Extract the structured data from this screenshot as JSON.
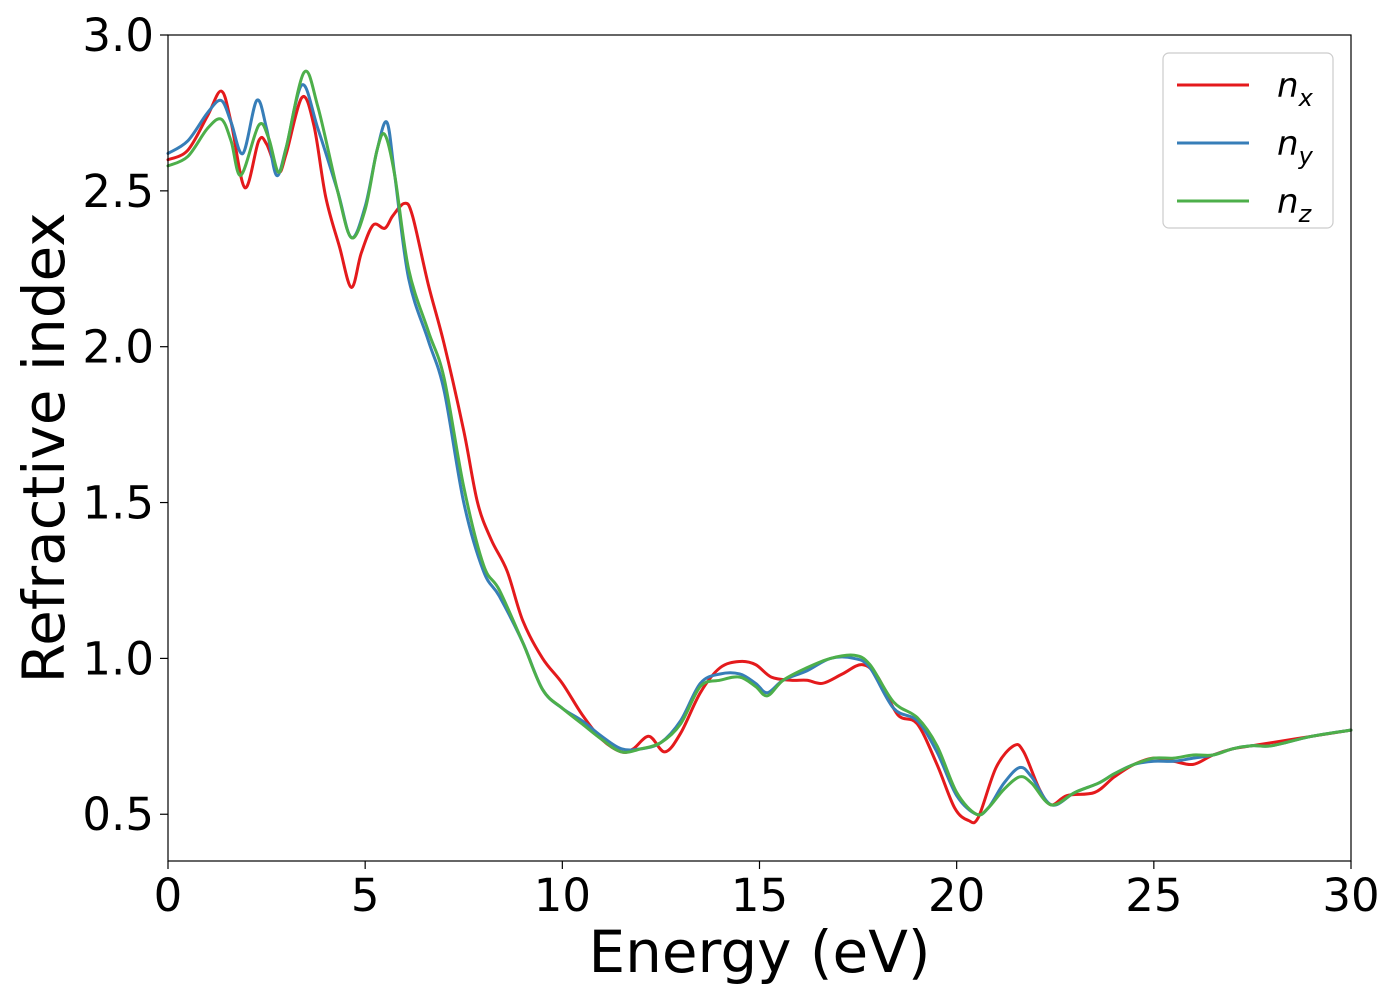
{
  "chart_data": {
    "type": "line",
    "title": "",
    "xlabel": "Energy (eV)",
    "ylabel": "Refractive index",
    "xlim": [
      0,
      30
    ],
    "ylim": [
      0.35,
      3.0
    ],
    "xticks": [
      0,
      5,
      10,
      15,
      20,
      25,
      30
    ],
    "yticks": [
      0.5,
      1.0,
      1.5,
      2.0,
      2.5,
      3.0
    ],
    "xtick_labels": [
      "0",
      "5",
      "10",
      "15",
      "20",
      "25",
      "30"
    ],
    "ytick_labels": [
      "0.5",
      "1.0",
      "1.5",
      "2.0",
      "2.5",
      "3.0"
    ],
    "grid": false,
    "legend_position": "top-right",
    "series": [
      {
        "name": "n",
        "subscript": "x",
        "color": "#e41a1c",
        "points": [
          [
            0,
            2.6
          ],
          [
            0.5,
            2.63
          ],
          [
            1.0,
            2.74
          ],
          [
            1.35,
            2.82
          ],
          [
            1.6,
            2.72
          ],
          [
            1.95,
            2.51
          ],
          [
            2.3,
            2.66
          ],
          [
            2.5,
            2.65
          ],
          [
            2.8,
            2.56
          ],
          [
            3.0,
            2.62
          ],
          [
            3.4,
            2.8
          ],
          [
            3.7,
            2.71
          ],
          [
            4.0,
            2.48
          ],
          [
            4.35,
            2.32
          ],
          [
            4.65,
            2.19
          ],
          [
            4.9,
            2.3
          ],
          [
            5.2,
            2.39
          ],
          [
            5.5,
            2.38
          ],
          [
            5.7,
            2.42
          ],
          [
            6.0,
            2.46
          ],
          [
            6.2,
            2.42
          ],
          [
            6.6,
            2.2
          ],
          [
            7.0,
            2.01
          ],
          [
            7.5,
            1.73
          ],
          [
            7.85,
            1.5
          ],
          [
            8.2,
            1.38
          ],
          [
            8.6,
            1.28
          ],
          [
            9.0,
            1.12
          ],
          [
            9.5,
            1.0
          ],
          [
            10.0,
            0.92
          ],
          [
            10.5,
            0.82
          ],
          [
            11.0,
            0.74
          ],
          [
            11.5,
            0.7
          ],
          [
            11.8,
            0.71
          ],
          [
            12.2,
            0.75
          ],
          [
            12.6,
            0.7
          ],
          [
            13.0,
            0.76
          ],
          [
            13.5,
            0.89
          ],
          [
            14.0,
            0.97
          ],
          [
            14.5,
            0.99
          ],
          [
            14.9,
            0.98
          ],
          [
            15.3,
            0.94
          ],
          [
            15.8,
            0.93
          ],
          [
            16.2,
            0.93
          ],
          [
            16.6,
            0.92
          ],
          [
            17.1,
            0.95
          ],
          [
            17.6,
            0.98
          ],
          [
            18.0,
            0.94
          ],
          [
            18.5,
            0.82
          ],
          [
            19.0,
            0.79
          ],
          [
            19.5,
            0.66
          ],
          [
            19.95,
            0.52
          ],
          [
            20.3,
            0.48
          ],
          [
            20.55,
            0.49
          ],
          [
            21.0,
            0.65
          ],
          [
            21.45,
            0.72
          ],
          [
            21.7,
            0.7
          ],
          [
            22.1,
            0.58
          ],
          [
            22.4,
            0.53
          ],
          [
            22.8,
            0.56
          ],
          [
            23.5,
            0.57
          ],
          [
            24.0,
            0.62
          ],
          [
            24.5,
            0.66
          ],
          [
            25.0,
            0.68
          ],
          [
            25.5,
            0.67
          ],
          [
            26.0,
            0.66
          ],
          [
            26.5,
            0.69
          ],
          [
            27.0,
            0.71
          ],
          [
            27.5,
            0.72
          ],
          [
            28.0,
            0.73
          ],
          [
            29.0,
            0.75
          ],
          [
            30,
            0.77
          ]
        ]
      },
      {
        "name": "n",
        "subscript": "y",
        "color": "#377eb8",
        "points": [
          [
            0,
            2.62
          ],
          [
            0.5,
            2.66
          ],
          [
            1.0,
            2.75
          ],
          [
            1.35,
            2.79
          ],
          [
            1.6,
            2.72
          ],
          [
            1.9,
            2.62
          ],
          [
            2.25,
            2.79
          ],
          [
            2.5,
            2.7
          ],
          [
            2.75,
            2.55
          ],
          [
            3.0,
            2.64
          ],
          [
            3.4,
            2.84
          ],
          [
            3.8,
            2.7
          ],
          [
            4.3,
            2.5
          ],
          [
            4.65,
            2.35
          ],
          [
            5.0,
            2.45
          ],
          [
            5.3,
            2.63
          ],
          [
            5.55,
            2.72
          ],
          [
            5.75,
            2.55
          ],
          [
            6.1,
            2.22
          ],
          [
            6.6,
            2.02
          ],
          [
            7.0,
            1.86
          ],
          [
            7.5,
            1.5
          ],
          [
            8.0,
            1.28
          ],
          [
            8.4,
            1.2
          ],
          [
            9.0,
            1.05
          ],
          [
            9.5,
            0.9
          ],
          [
            10.0,
            0.84
          ],
          [
            10.5,
            0.8
          ],
          [
            11.0,
            0.75
          ],
          [
            11.5,
            0.71
          ],
          [
            12.0,
            0.71
          ],
          [
            12.5,
            0.73
          ],
          [
            13.0,
            0.8
          ],
          [
            13.5,
            0.92
          ],
          [
            14.0,
            0.95
          ],
          [
            14.5,
            0.95
          ],
          [
            14.9,
            0.92
          ],
          [
            15.2,
            0.89
          ],
          [
            15.6,
            0.93
          ],
          [
            16.2,
            0.96
          ],
          [
            16.8,
            1.0
          ],
          [
            17.4,
            1.0
          ],
          [
            17.8,
            0.97
          ],
          [
            18.4,
            0.84
          ],
          [
            19.0,
            0.8
          ],
          [
            19.5,
            0.7
          ],
          [
            20.0,
            0.56
          ],
          [
            20.5,
            0.5
          ],
          [
            20.8,
            0.52
          ],
          [
            21.2,
            0.6
          ],
          [
            21.6,
            0.65
          ],
          [
            21.9,
            0.62
          ],
          [
            22.4,
            0.53
          ],
          [
            23.0,
            0.57
          ],
          [
            23.6,
            0.6
          ],
          [
            24.0,
            0.63
          ],
          [
            24.5,
            0.66
          ],
          [
            25.0,
            0.67
          ],
          [
            25.5,
            0.67
          ],
          [
            26.0,
            0.68
          ],
          [
            26.5,
            0.69
          ],
          [
            27.0,
            0.71
          ],
          [
            27.5,
            0.72
          ],
          [
            28.0,
            0.72
          ],
          [
            29.0,
            0.75
          ],
          [
            30,
            0.77
          ]
        ]
      },
      {
        "name": "n",
        "subscript": "z",
        "color": "#4daf4a",
        "points": [
          [
            0,
            2.58
          ],
          [
            0.5,
            2.61
          ],
          [
            1.0,
            2.7
          ],
          [
            1.35,
            2.73
          ],
          [
            1.6,
            2.66
          ],
          [
            1.85,
            2.55
          ],
          [
            2.3,
            2.71
          ],
          [
            2.55,
            2.67
          ],
          [
            2.8,
            2.56
          ],
          [
            3.0,
            2.64
          ],
          [
            3.45,
            2.88
          ],
          [
            3.8,
            2.77
          ],
          [
            4.3,
            2.5
          ],
          [
            4.65,
            2.35
          ],
          [
            5.0,
            2.44
          ],
          [
            5.3,
            2.63
          ],
          [
            5.5,
            2.68
          ],
          [
            5.75,
            2.55
          ],
          [
            6.1,
            2.25
          ],
          [
            6.6,
            2.05
          ],
          [
            7.0,
            1.9
          ],
          [
            7.5,
            1.55
          ],
          [
            8.0,
            1.3
          ],
          [
            8.4,
            1.22
          ],
          [
            9.0,
            1.05
          ],
          [
            9.5,
            0.9
          ],
          [
            10.0,
            0.84
          ],
          [
            10.5,
            0.79
          ],
          [
            11.0,
            0.74
          ],
          [
            11.5,
            0.7
          ],
          [
            12.0,
            0.71
          ],
          [
            12.5,
            0.73
          ],
          [
            13.0,
            0.79
          ],
          [
            13.5,
            0.91
          ],
          [
            14.0,
            0.93
          ],
          [
            14.5,
            0.94
          ],
          [
            14.9,
            0.91
          ],
          [
            15.2,
            0.88
          ],
          [
            15.6,
            0.93
          ],
          [
            16.2,
            0.97
          ],
          [
            16.8,
            1.0
          ],
          [
            17.4,
            1.01
          ],
          [
            17.8,
            0.98
          ],
          [
            18.4,
            0.86
          ],
          [
            19.0,
            0.81
          ],
          [
            19.5,
            0.72
          ],
          [
            20.0,
            0.57
          ],
          [
            20.5,
            0.5
          ],
          [
            20.8,
            0.52
          ],
          [
            21.2,
            0.58
          ],
          [
            21.6,
            0.62
          ],
          [
            21.9,
            0.6
          ],
          [
            22.4,
            0.53
          ],
          [
            23.0,
            0.57
          ],
          [
            23.6,
            0.6
          ],
          [
            24.0,
            0.63
          ],
          [
            24.5,
            0.66
          ],
          [
            25.0,
            0.68
          ],
          [
            25.5,
            0.68
          ],
          [
            26.0,
            0.69
          ],
          [
            26.5,
            0.69
          ],
          [
            27.0,
            0.71
          ],
          [
            27.5,
            0.72
          ],
          [
            28.0,
            0.72
          ],
          [
            29.0,
            0.75
          ],
          [
            30,
            0.77
          ]
        ]
      }
    ]
  }
}
